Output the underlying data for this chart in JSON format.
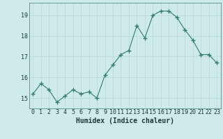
{
  "x": [
    0,
    1,
    2,
    3,
    4,
    5,
    6,
    7,
    8,
    9,
    10,
    11,
    12,
    13,
    14,
    15,
    16,
    17,
    18,
    19,
    20,
    21,
    22,
    23
  ],
  "y": [
    15.2,
    15.7,
    15.4,
    14.8,
    15.1,
    15.4,
    15.2,
    15.3,
    15.0,
    16.1,
    16.6,
    17.1,
    17.3,
    18.5,
    17.9,
    19.0,
    19.2,
    19.2,
    18.9,
    18.3,
    17.8,
    17.1,
    17.1,
    16.7
  ],
  "line_color": "#2e7d6e",
  "marker": "+",
  "marker_size": 4,
  "bg_color": "#ceeaea",
  "grid_color": "#b8d8d8",
  "xlabel": "Humidex (Indice chaleur)",
  "yticks": [
    15,
    16,
    17,
    18,
    19
  ],
  "xticks": [
    0,
    1,
    2,
    3,
    4,
    5,
    6,
    7,
    8,
    9,
    10,
    11,
    12,
    13,
    14,
    15,
    16,
    17,
    18,
    19,
    20,
    21,
    22,
    23
  ],
  "xlim": [
    -0.5,
    23.5
  ],
  "ylim": [
    14.5,
    19.6
  ],
  "tick_fontsize": 6,
  "label_fontsize": 7
}
